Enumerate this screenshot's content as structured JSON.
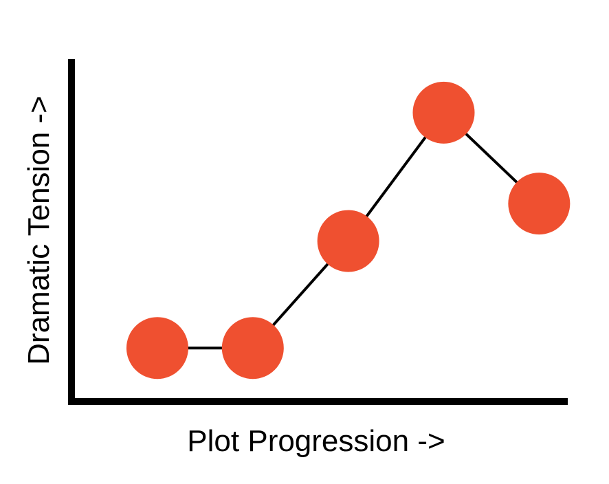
{
  "chart_data": {
    "type": "line",
    "title": "",
    "xlabel": "Plot Progression ->",
    "ylabel": "Dramatic Tension ->",
    "x": [
      1,
      2,
      3,
      4,
      5
    ],
    "y": [
      1.0,
      1.0,
      2.0,
      3.2,
      2.35
    ],
    "xlim": [
      0.1,
      5.3
    ],
    "ylim": [
      0.5,
      3.7
    ],
    "grid": false,
    "legend": "none",
    "marker_color": "#EF5030",
    "line_color": "#000000",
    "axis_color": "#000000"
  }
}
